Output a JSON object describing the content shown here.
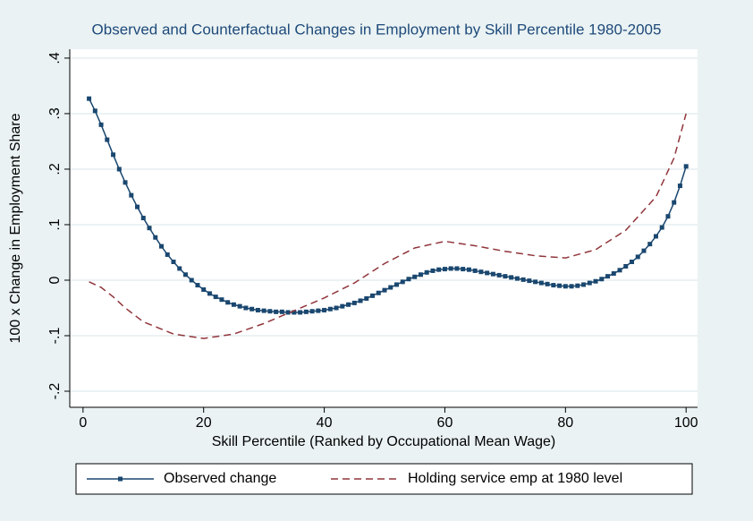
{
  "chart_data": {
    "type": "line",
    "title": "Observed and Counterfactual Changes in Employment by Skill Percentile 1980-2005",
    "x_label": "Skill Percentile (Ranked by Occupational Mean Wage)",
    "y_label": "100 x Change in Employment Share",
    "xlim": [
      -2.2,
      101.9
    ],
    "ylim": [
      -0.229,
      0.416
    ],
    "xticks": [
      0,
      20,
      40,
      60,
      80,
      100
    ],
    "yticks": [
      {
        "value": -0.2,
        "label": "-.2"
      },
      {
        "value": -0.1,
        "label": "-.1"
      },
      0,
      {
        "value": 0.1,
        "label": ".1"
      },
      {
        "value": 0.2,
        "label": ".2"
      },
      {
        "value": 0.3,
        "label": ".3"
      },
      {
        "value": 0.4,
        "label": ".4"
      }
    ],
    "grid": true,
    "legend": "bottom",
    "series": [
      {
        "name": "Observed change",
        "color": "#1a476f",
        "line_style": "solid",
        "marker": "square",
        "x": [
          1,
          2,
          3,
          4,
          5,
          6,
          7,
          8,
          9,
          10,
          11,
          12,
          13,
          14,
          15,
          16,
          17,
          18,
          19,
          20,
          21,
          22,
          23,
          24,
          25,
          26,
          27,
          28,
          29,
          30,
          31,
          32,
          33,
          34,
          35,
          36,
          37,
          38,
          39,
          40,
          41,
          42,
          43,
          44,
          45,
          46,
          47,
          48,
          49,
          50,
          51,
          52,
          53,
          54,
          55,
          56,
          57,
          58,
          59,
          60,
          61,
          62,
          63,
          64,
          65,
          66,
          67,
          68,
          69,
          70,
          71,
          72,
          73,
          74,
          75,
          76,
          77,
          78,
          79,
          80,
          81,
          82,
          83,
          84,
          85,
          86,
          87,
          88,
          89,
          90,
          91,
          92,
          93,
          94,
          95,
          96,
          97,
          98,
          99,
          100
        ],
        "values": [
          0.327,
          0.305,
          0.28,
          0.253,
          0.226,
          0.2,
          0.176,
          0.153,
          0.132,
          0.112,
          0.094,
          0.077,
          0.061,
          0.046,
          0.033,
          0.021,
          0.01,
          0.0,
          -0.009,
          -0.017,
          -0.024,
          -0.03,
          -0.035,
          -0.04,
          -0.044,
          -0.047,
          -0.05,
          -0.052,
          -0.054,
          -0.055,
          -0.056,
          -0.057,
          -0.057,
          -0.058,
          -0.058,
          -0.058,
          -0.057,
          -0.056,
          -0.055,
          -0.054,
          -0.052,
          -0.05,
          -0.047,
          -0.044,
          -0.041,
          -0.037,
          -0.033,
          -0.028,
          -0.023,
          -0.018,
          -0.013,
          -0.008,
          -0.003,
          0.002,
          0.006,
          0.01,
          0.014,
          0.017,
          0.019,
          0.02,
          0.021,
          0.021,
          0.02,
          0.019,
          0.017,
          0.015,
          0.013,
          0.011,
          0.009,
          0.007,
          0.005,
          0.003,
          0.001,
          -0.001,
          -0.003,
          -0.005,
          -0.007,
          -0.009,
          -0.01,
          -0.011,
          -0.011,
          -0.01,
          -0.008,
          -0.005,
          -0.002,
          0.002,
          0.007,
          0.012,
          0.018,
          0.025,
          0.033,
          0.042,
          0.053,
          0.065,
          0.079,
          0.095,
          0.115,
          0.14,
          0.17,
          0.205
        ]
      },
      {
        "name": "Holding service emp at 1980 level",
        "color": "#90353b",
        "line_style": "dashed",
        "marker": "none",
        "x": [
          1,
          3,
          5,
          7,
          10,
          15,
          20,
          25,
          30,
          35,
          40,
          45,
          50,
          55,
          60,
          65,
          70,
          75,
          80,
          85,
          90,
          95,
          98,
          100
        ],
        "values": [
          -0.003,
          -0.013,
          -0.03,
          -0.05,
          -0.075,
          -0.097,
          -0.105,
          -0.097,
          -0.078,
          -0.055,
          -0.032,
          -0.005,
          0.03,
          0.058,
          0.07,
          0.062,
          0.052,
          0.044,
          0.04,
          0.055,
          0.09,
          0.15,
          0.22,
          0.3
        ]
      }
    ]
  }
}
